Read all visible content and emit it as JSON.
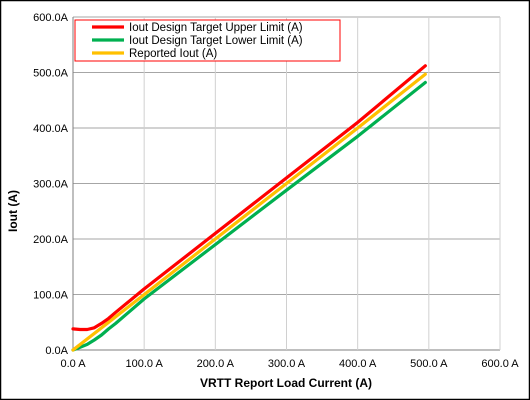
{
  "chart_data": {
    "type": "line",
    "title": "",
    "xlabel": "VRTT Report Load Current (A)",
    "ylabel": "Iout (A)",
    "xlim": [
      0,
      600
    ],
    "ylim": [
      0,
      600
    ],
    "x_ticks": [
      0,
      100,
      200,
      300,
      400,
      500,
      600
    ],
    "x_tick_labels": [
      "0.0 A",
      "100.0 A",
      "200.0 A",
      "300.0 A",
      "400.0 A",
      "500.0 A",
      "600.0 A"
    ],
    "y_ticks": [
      0,
      100,
      200,
      300,
      400,
      500,
      600
    ],
    "y_tick_labels": [
      "0.0A",
      "100.0A",
      "200.0A",
      "300.0A",
      "400.0A",
      "500.0A",
      "600.0A"
    ],
    "grid": true,
    "legend_position": "top-left",
    "series": [
      {
        "name": "Iout Design Target Upper Limit (A)",
        "color": "#ff0000",
        "x": [
          0,
          10,
          20,
          30,
          40,
          50,
          60,
          100,
          200,
          300,
          400,
          495
        ],
        "y": [
          38,
          37,
          37,
          40,
          48,
          57,
          68,
          110,
          210,
          310,
          410,
          512
        ]
      },
      {
        "name": "Iout Design Target Lower Limit (A)",
        "color": "#00b050",
        "x": [
          0,
          10,
          20,
          30,
          40,
          50,
          60,
          100,
          200,
          300,
          400,
          495
        ],
        "y": [
          0,
          5,
          10,
          18,
          27,
          38,
          48,
          92,
          190,
          288,
          385,
          482
        ]
      },
      {
        "name": "Reported Iout (A)",
        "color": "#ffc000",
        "x": [
          0,
          50,
          100,
          200,
          300,
          400,
          495
        ],
        "y": [
          0,
          50,
          100,
          200,
          300,
          400,
          497
        ]
      }
    ]
  }
}
